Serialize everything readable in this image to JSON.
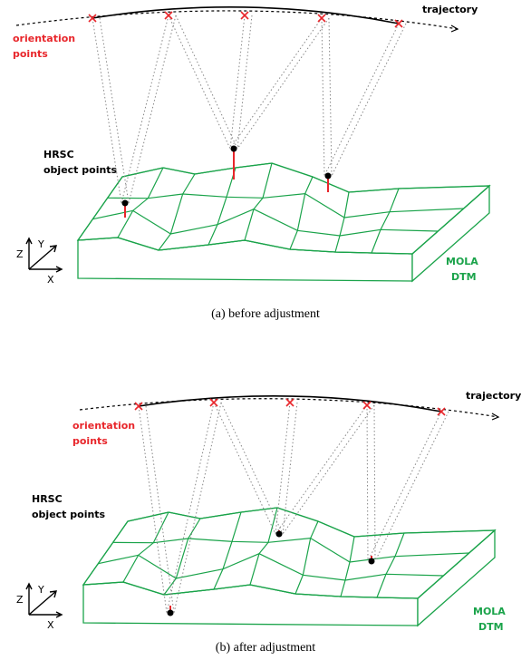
{
  "panels": [
    {
      "trajectory": "trajectory",
      "orientation": [
        "orientation",
        "points"
      ],
      "hrsc": [
        "HRSC",
        "object points"
      ],
      "axes": {
        "z": "Z",
        "y": "Y",
        "x": "X"
      },
      "dtm": [
        "MOLA",
        "DTM"
      ],
      "caption": "(a)  before adjustment"
    },
    {
      "trajectory": "trajectory",
      "orientation": [
        "orientation",
        "points"
      ],
      "hrsc": [
        "HRSC",
        "object points"
      ],
      "axes": {
        "z": "Z",
        "y": "Y",
        "x": "X"
      },
      "dtm": [
        "MOLA",
        "DTM"
      ],
      "caption": "(b)  after adjustment"
    }
  ]
}
